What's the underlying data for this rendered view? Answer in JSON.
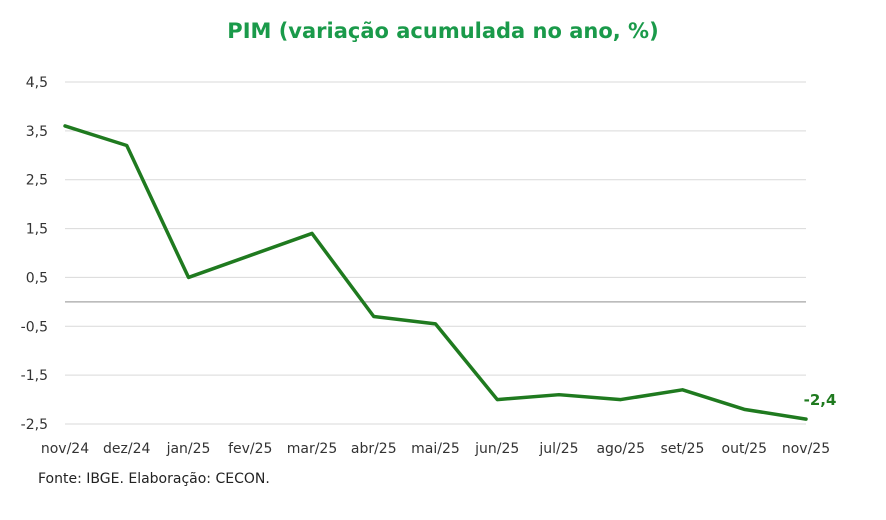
{
  "chart_data": {
    "type": "line",
    "title": "PIM (variação acumulada no ano, %)",
    "categories": [
      "nov/24",
      "dez/24",
      "jan/25",
      "fev/25",
      "mar/25",
      "abr/25",
      "mai/25",
      "jun/25",
      "jul/25",
      "ago/25",
      "set/25",
      "out/25",
      "nov/25"
    ],
    "series": [
      {
        "values": [
          3.6,
          3.2,
          0.5,
          0.95,
          1.4,
          -0.3,
          -0.45,
          -2.0,
          -1.9,
          -2.0,
          -1.8,
          -2.2,
          -2.4
        ]
      }
    ],
    "yticks": [
      "4,5",
      "3,5",
      "2,5",
      "1,5",
      "0,5",
      "-0,5",
      "-1,5",
      "-2,5"
    ],
    "ytick_values": [
      4.5,
      3.5,
      2.5,
      1.5,
      0.5,
      -0.5,
      -1.5,
      -2.5
    ],
    "ylim": [
      -2.5,
      4.5
    ],
    "end_label": "-2,4",
    "grid": true,
    "zero_line": true,
    "colors": {
      "line": "#1f7a1f",
      "title": "#1a9a4a",
      "grid": "#d9d9d9",
      "zero": "#a6a6a6"
    }
  },
  "source": "Fonte: IBGE. Elaboração: CECON."
}
